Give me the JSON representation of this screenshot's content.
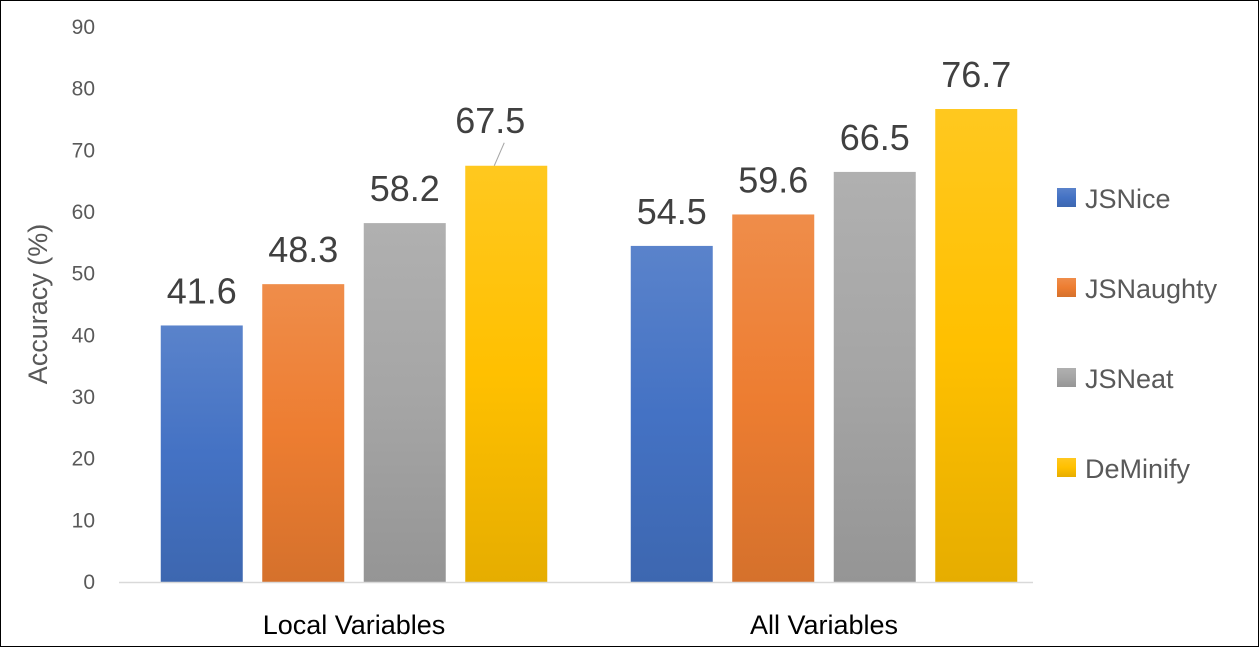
{
  "chart_data": {
    "type": "bar",
    "title": "",
    "xlabel": "",
    "ylabel": "Accuracy (%)",
    "ylim": [
      0,
      90
    ],
    "yticks": [
      0,
      10,
      20,
      30,
      40,
      50,
      60,
      70,
      80,
      90
    ],
    "grid": false,
    "legend_position": "right",
    "categories": [
      "Local Variables",
      "All Variables"
    ],
    "series": [
      {
        "name": "JSNice",
        "values": [
          41.6,
          54.5
        ],
        "color": "#4472C4"
      },
      {
        "name": "JSNaughty",
        "values": [
          48.3,
          59.6
        ],
        "color": "#ED7D31"
      },
      {
        "name": "JSNeat",
        "values": [
          58.2,
          66.5
        ],
        "color": "#A5A5A5"
      },
      {
        "name": "DeMinify",
        "values": [
          67.5,
          76.7
        ],
        "color": "#FFC000"
      }
    ]
  }
}
